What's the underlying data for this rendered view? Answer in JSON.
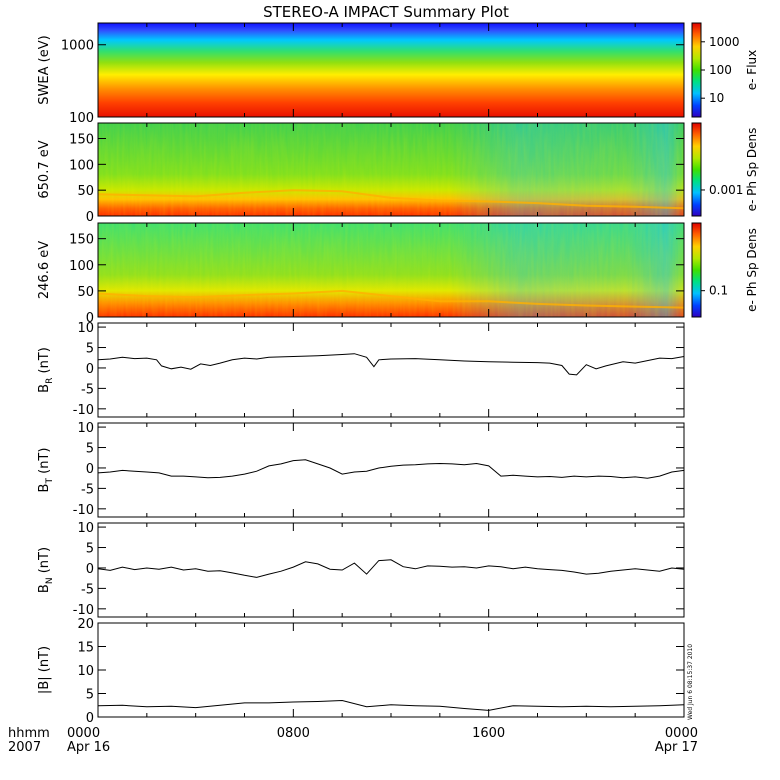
{
  "figure": {
    "title": "STEREO-A IMPACT Summary Plot",
    "x_axis": {
      "row1_label": "hhmm",
      "row2_label": "2007",
      "ticks": [
        {
          "hours": 0,
          "time": "0000",
          "date": "Apr 16"
        },
        {
          "hours": 8,
          "time": "0800",
          "date": ""
        },
        {
          "hours": 16,
          "time": "1600",
          "date": ""
        },
        {
          "hours": 24,
          "time": "0000",
          "date": "Apr 17"
        }
      ]
    },
    "timestamp_stamp": "Wed Jun 6 08:15:37 2010"
  },
  "chart_data": [
    {
      "type": "heatmap",
      "ylabel": "SWEA (eV)",
      "yscale": "log",
      "ylim": [
        100,
        2000
      ],
      "yticks": [
        "100",
        "1000"
      ],
      "colorbar": {
        "label": "e- Flux",
        "scale": "log",
        "ticks": [
          "10",
          "100",
          "1000"
        ]
      },
      "description_of_values": "energy spectrogram: highest flux (red) at low energies ~100-200 eV, green ~500 eV, blue above ~1000 eV; nearly constant over the day"
    },
    {
      "type": "heatmap",
      "ylabel": "650.7 eV",
      "ylim": [
        0,
        180
      ],
      "yticks": [
        "0",
        "50",
        "100",
        "150"
      ],
      "colorbar": {
        "label": "e- Ph Sp Dens",
        "ticks": [
          "0.001"
        ]
      },
      "x_hours": [
        0,
        2,
        4,
        6,
        8,
        10,
        12,
        14,
        16,
        18,
        20,
        22,
        24
      ],
      "strahl_edge_deg": [
        42,
        40,
        38,
        45,
        50,
        48,
        35,
        30,
        28,
        25,
        20,
        18,
        15
      ]
    },
    {
      "type": "heatmap",
      "ylabel": "246.6 eV",
      "ylim": [
        0,
        180
      ],
      "yticks": [
        "0",
        "50",
        "100",
        "150"
      ],
      "colorbar": {
        "label": "e- Ph Sp Dens",
        "ticks": [
          "0.1"
        ]
      },
      "x_hours": [
        0,
        2,
        4,
        6,
        8,
        10,
        12,
        14,
        16,
        18,
        20,
        22,
        24
      ],
      "strahl_edge_deg": [
        45,
        40,
        38,
        42,
        45,
        50,
        40,
        30,
        30,
        25,
        22,
        20,
        18
      ]
    },
    {
      "type": "line",
      "ylabel": "B",
      "ylabel_sub": "R",
      "ylabel_unit": "(nT)",
      "ylim": [
        -12,
        11
      ],
      "yticks": [
        "-10",
        "-5",
        "0",
        "5",
        "10"
      ],
      "x_hours": [
        0,
        0.5,
        1,
        1.5,
        2,
        2.4,
        2.6,
        3,
        3.4,
        3.8,
        4.2,
        4.6,
        5,
        5.5,
        6,
        6.5,
        7,
        8,
        9,
        10,
        10.5,
        11,
        11.3,
        11.5,
        12,
        13,
        14,
        15,
        16,
        17,
        18,
        18.5,
        19,
        19.3,
        19.6,
        20,
        20.4,
        20.8,
        21.5,
        22,
        22.5,
        23,
        23.5,
        24
      ],
      "y_nT": [
        2.0,
        2.2,
        2.6,
        2.3,
        2.4,
        2.0,
        0.5,
        -0.2,
        0.2,
        -0.3,
        1.0,
        0.6,
        1.2,
        2.0,
        2.4,
        2.2,
        2.6,
        2.8,
        3.0,
        3.3,
        3.5,
        2.6,
        0.3,
        2.0,
        2.2,
        2.3,
        2.0,
        1.7,
        1.5,
        1.4,
        1.3,
        1.2,
        0.6,
        -1.5,
        -1.7,
        0.8,
        -0.2,
        0.5,
        1.5,
        1.2,
        1.8,
        2.4,
        2.3,
        2.8
      ]
    },
    {
      "type": "line",
      "ylabel": "B",
      "ylabel_sub": "T",
      "ylabel_unit": "(nT)",
      "ylim": [
        -12,
        11
      ],
      "yticks": [
        "-10",
        "-5",
        "0",
        "5",
        "10"
      ],
      "x_hours": [
        0,
        0.5,
        1,
        1.5,
        2,
        2.5,
        3,
        3.5,
        4,
        4.5,
        5,
        5.5,
        6,
        6.5,
        7,
        7.5,
        8,
        8.5,
        9,
        9.5,
        10,
        10.5,
        11,
        11.5,
        12,
        12.5,
        13,
        13.5,
        14,
        14.5,
        15,
        15.5,
        16,
        16.5,
        17,
        17.5,
        18,
        18.5,
        19,
        19.5,
        20,
        20.5,
        21,
        21.5,
        22,
        22.5,
        23,
        23.5,
        24
      ],
      "y_nT": [
        -1.2,
        -1.0,
        -0.6,
        -0.8,
        -1.0,
        -1.2,
        -2.0,
        -2.0,
        -2.2,
        -2.4,
        -2.3,
        -2.0,
        -1.5,
        -0.8,
        0.5,
        1.0,
        1.8,
        2.0,
        1.0,
        0.0,
        -1.5,
        -1.0,
        -0.8,
        0.0,
        0.4,
        0.7,
        0.8,
        1.0,
        1.1,
        1.0,
        0.8,
        1.1,
        0.5,
        -2.0,
        -1.8,
        -2.0,
        -2.2,
        -2.1,
        -2.3,
        -2.0,
        -2.2,
        -2.0,
        -2.1,
        -2.4,
        -2.2,
        -2.5,
        -2.0,
        -1.0,
        -0.6
      ]
    },
    {
      "type": "line",
      "ylabel": "B",
      "ylabel_sub": "N",
      "ylabel_unit": "(nT)",
      "ylim": [
        -12,
        11
      ],
      "yticks": [
        "-10",
        "-5",
        "0",
        "5",
        "10"
      ],
      "x_hours": [
        0,
        0.5,
        1,
        1.5,
        2,
        2.5,
        3,
        3.5,
        4,
        4.5,
        5,
        5.5,
        6,
        6.5,
        7,
        7.5,
        8,
        8.5,
        9,
        9.5,
        10,
        10.5,
        11,
        11.5,
        12,
        12.5,
        13,
        13.5,
        14,
        14.5,
        15,
        15.5,
        16,
        16.5,
        17,
        17.5,
        18,
        18.5,
        19,
        19.5,
        20,
        20.5,
        21,
        21.5,
        22,
        22.5,
        23,
        23.5,
        24
      ],
      "y_nT": [
        -0.2,
        -0.6,
        0.2,
        -0.4,
        0.0,
        -0.3,
        0.2,
        -0.5,
        -0.2,
        -0.8,
        -0.7,
        -1.2,
        -1.8,
        -2.3,
        -1.5,
        -0.8,
        0.2,
        1.5,
        1.0,
        -0.3,
        -0.5,
        1.2,
        -1.5,
        1.8,
        2.0,
        0.3,
        -0.2,
        0.5,
        0.4,
        0.2,
        0.3,
        0.0,
        0.5,
        0.3,
        -0.2,
        0.2,
        -0.2,
        -0.4,
        -0.6,
        -1.0,
        -1.5,
        -1.3,
        -0.8,
        -0.5,
        -0.2,
        -0.5,
        -0.8,
        0.0,
        -0.3
      ]
    },
    {
      "type": "line",
      "ylabel": "|B| (nT)",
      "ylim": [
        0,
        20
      ],
      "yticks": [
        "0",
        "5",
        "10",
        "15",
        "20"
      ],
      "x_hours": [
        0,
        1,
        2,
        3,
        4,
        5,
        6,
        7,
        8,
        9,
        10,
        11,
        12,
        13,
        14,
        15,
        16,
        17,
        18,
        19,
        20,
        21,
        22,
        23,
        24
      ],
      "y_nT": [
        2.4,
        2.5,
        2.2,
        2.3,
        2.0,
        2.5,
        3.0,
        3.0,
        3.2,
        3.3,
        3.5,
        2.2,
        2.6,
        2.4,
        2.3,
        1.8,
        1.4,
        2.4,
        2.3,
        2.2,
        2.3,
        2.2,
        2.3,
        2.4,
        2.6
      ]
    }
  ]
}
